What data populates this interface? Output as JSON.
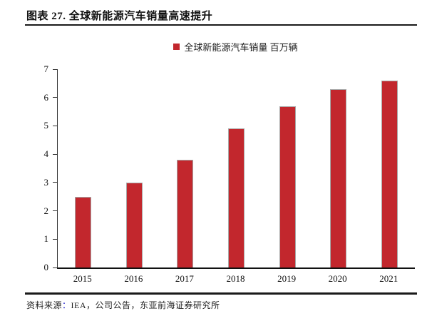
{
  "header": {
    "title": "图表 27. 全球新能源汽车销量高速提升"
  },
  "legend": {
    "label": "全球新能源汽车销量 百万辆"
  },
  "footer": {
    "source_label": "资料来源",
    "source_colon": "：",
    "source_text": "IEA，公司公告，东亚前海证券研究所"
  },
  "colors": {
    "bar": "#C2272D",
    "legend_marker": "#C2272D",
    "axis": "#333333",
    "rule": "#1A1A1A",
    "source_colon": "#2222CC"
  },
  "chart_data": {
    "type": "bar",
    "categories": [
      "2015",
      "2016",
      "2017",
      "2018",
      "2019",
      "2020",
      "2021"
    ],
    "values": [
      2.5,
      3.0,
      3.8,
      4.9,
      5.7,
      6.3,
      6.6
    ],
    "title": "图表 27. 全球新能源汽车销量高速提升",
    "legend_entries": [
      "全球新能源汽车销量 百万辆"
    ],
    "xlabel": "",
    "ylabel": "",
    "ylim": [
      0,
      7
    ],
    "ytick_step": 1,
    "grid": false,
    "legend_position": "top-center"
  }
}
